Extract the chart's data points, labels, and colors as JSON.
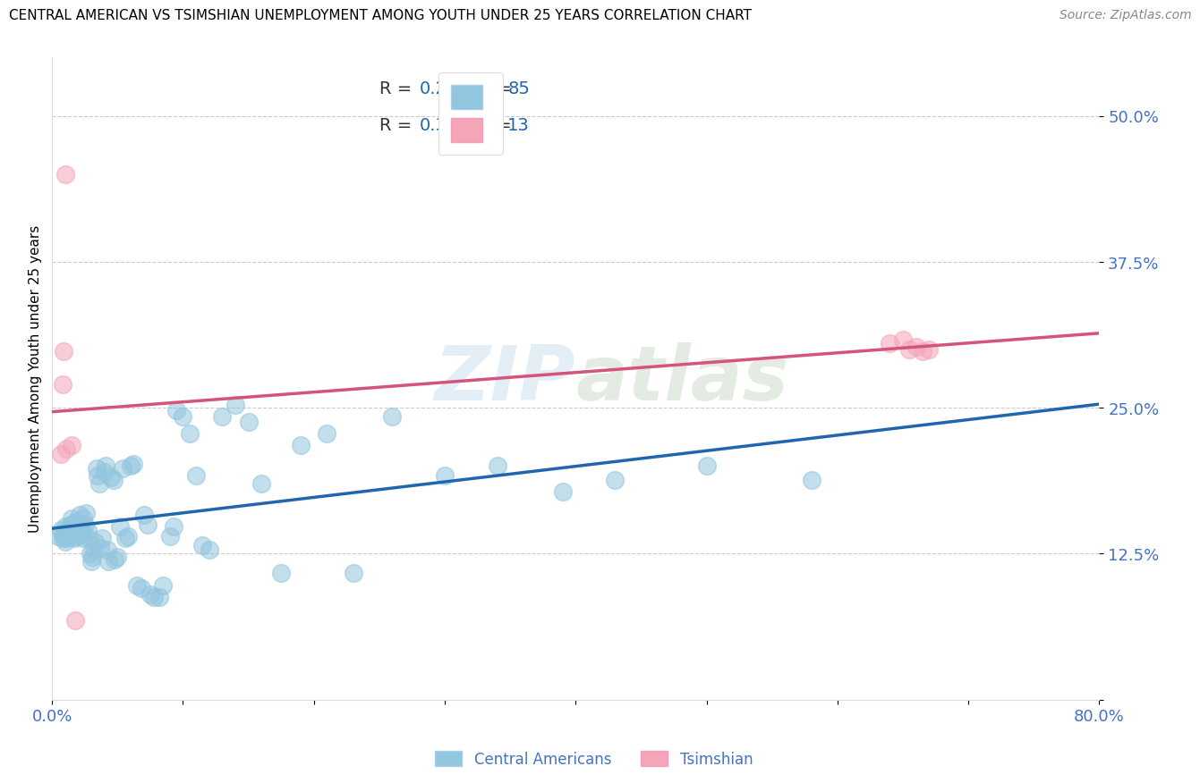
{
  "title": "CENTRAL AMERICAN VS TSIMSHIAN UNEMPLOYMENT AMONG YOUTH UNDER 25 YEARS CORRELATION CHART",
  "source": "Source: ZipAtlas.com",
  "ylabel": "Unemployment Among Youth under 25 years",
  "xlim": [
    0.0,
    0.8
  ],
  "ylim": [
    0.0,
    0.55
  ],
  "yticks": [
    0.0,
    0.125,
    0.25,
    0.375,
    0.5
  ],
  "ytick_labels": [
    "",
    "12.5%",
    "25.0%",
    "37.5%",
    "50.0%"
  ],
  "xticks": [
    0.0,
    0.1,
    0.2,
    0.3,
    0.4,
    0.5,
    0.6,
    0.7,
    0.8
  ],
  "xtick_labels": [
    "0.0%",
    "",
    "",
    "",
    "",
    "",
    "",
    "",
    "80.0%"
  ],
  "R_blue": 0.265,
  "N_blue": 85,
  "R_pink": 0.31,
  "N_pink": 13,
  "watermark_text": "ZIPAtlas",
  "blue_scatter_color": "#92c5de",
  "pink_scatter_color": "#f4a5b8",
  "blue_line_color": "#2166ac",
  "pink_line_color": "#d6537a",
  "tick_color": "#4472c4",
  "background_color": "#ffffff",
  "grid_color": "#cccccc",
  "ca_x": [
    0.005,
    0.007,
    0.008,
    0.009,
    0.01,
    0.01,
    0.01,
    0.011,
    0.012,
    0.013,
    0.014,
    0.015,
    0.015,
    0.016,
    0.017,
    0.018,
    0.018,
    0.019,
    0.02,
    0.02,
    0.021,
    0.022,
    0.022,
    0.023,
    0.024,
    0.024,
    0.025,
    0.026,
    0.027,
    0.028,
    0.029,
    0.03,
    0.031,
    0.032,
    0.033,
    0.034,
    0.035,
    0.036,
    0.037,
    0.038,
    0.04,
    0.041,
    0.042,
    0.043,
    0.045,
    0.047,
    0.048,
    0.05,
    0.052,
    0.054,
    0.056,
    0.058,
    0.06,
    0.062,
    0.065,
    0.068,
    0.07,
    0.073,
    0.075,
    0.078,
    0.082,
    0.085,
    0.09,
    0.093,
    0.095,
    0.1,
    0.105,
    0.11,
    0.115,
    0.12,
    0.13,
    0.14,
    0.15,
    0.16,
    0.175,
    0.19,
    0.21,
    0.23,
    0.26,
    0.3,
    0.34,
    0.39,
    0.43,
    0.5,
    0.58
  ],
  "ca_y": [
    0.14,
    0.145,
    0.138,
    0.142,
    0.148,
    0.135,
    0.143,
    0.138,
    0.145,
    0.14,
    0.15,
    0.155,
    0.148,
    0.142,
    0.138,
    0.145,
    0.152,
    0.14,
    0.145,
    0.15,
    0.158,
    0.148,
    0.142,
    0.145,
    0.138,
    0.155,
    0.15,
    0.16,
    0.145,
    0.138,
    0.125,
    0.118,
    0.122,
    0.128,
    0.135,
    0.198,
    0.192,
    0.185,
    0.13,
    0.138,
    0.195,
    0.2,
    0.128,
    0.118,
    0.19,
    0.188,
    0.12,
    0.122,
    0.148,
    0.198,
    0.138,
    0.14,
    0.2,
    0.202,
    0.098,
    0.095,
    0.158,
    0.15,
    0.09,
    0.088,
    0.088,
    0.098,
    0.14,
    0.148,
    0.248,
    0.242,
    0.228,
    0.192,
    0.132,
    0.128,
    0.242,
    0.252,
    0.238,
    0.185,
    0.108,
    0.218,
    0.228,
    0.108,
    0.242,
    0.192,
    0.2,
    0.178,
    0.188,
    0.2,
    0.188
  ],
  "ts_x": [
    0.007,
    0.008,
    0.009,
    0.01,
    0.011,
    0.015,
    0.018,
    0.64,
    0.65,
    0.655,
    0.66,
    0.665,
    0.67
  ],
  "ts_y": [
    0.21,
    0.27,
    0.298,
    0.45,
    0.215,
    0.218,
    0.068,
    0.305,
    0.308,
    0.3,
    0.302,
    0.298,
    0.3
  ]
}
